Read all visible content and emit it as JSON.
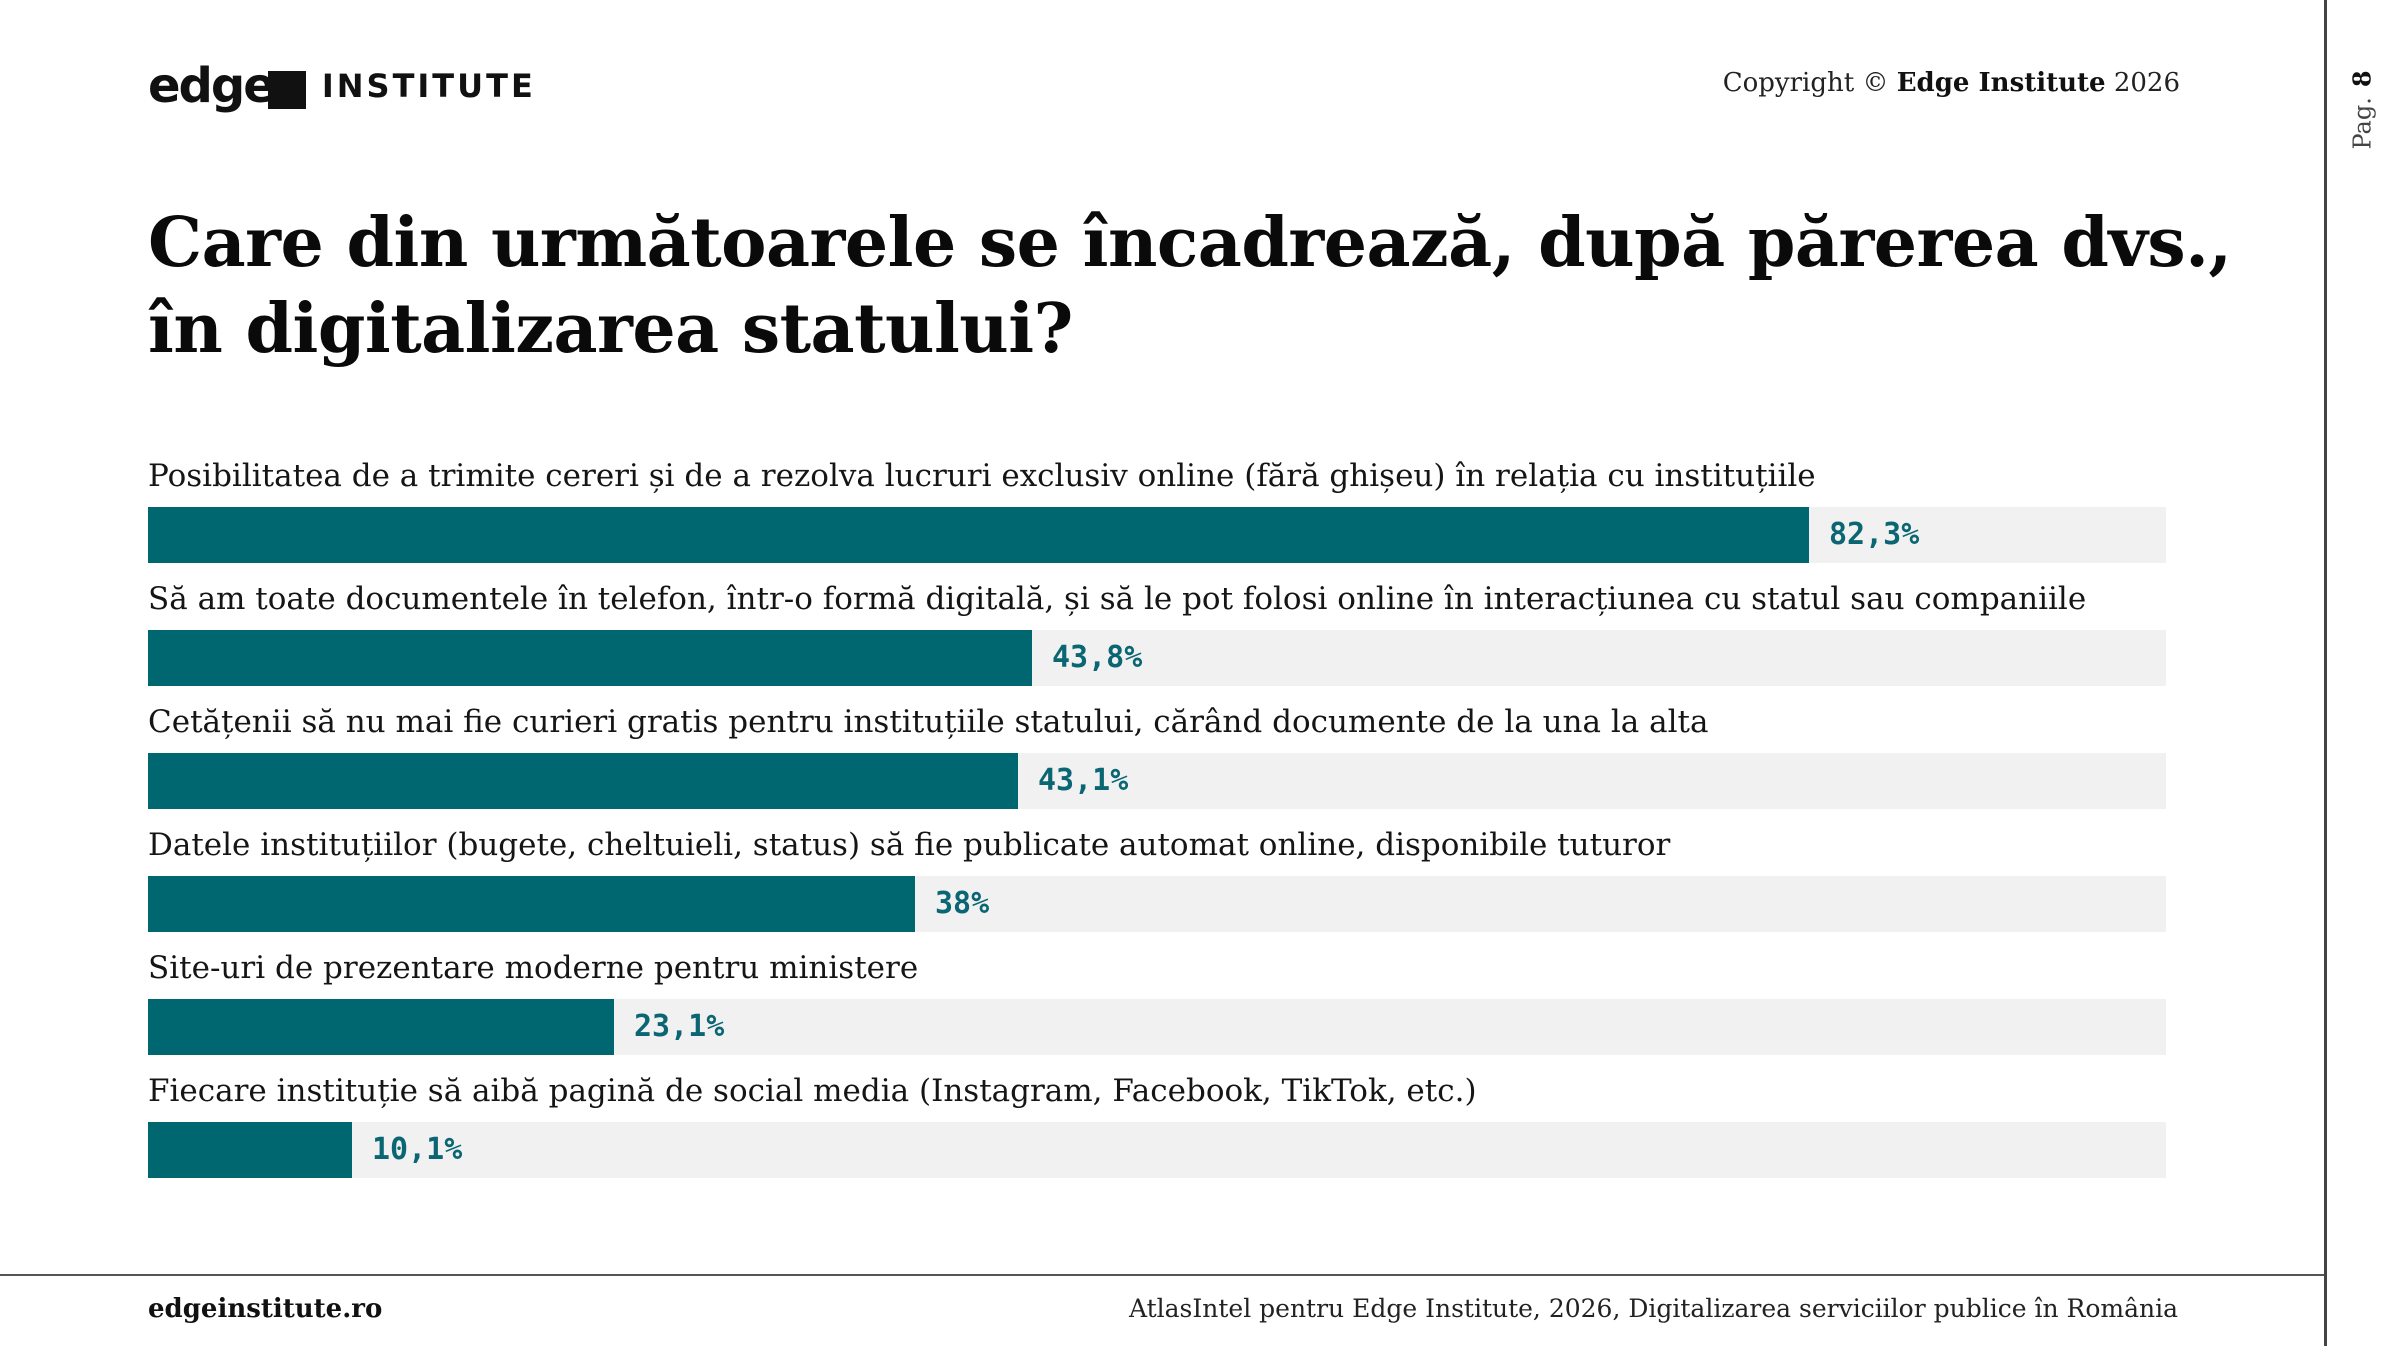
{
  "header": {
    "logo_main": "edge",
    "logo_sub": "INSTITUTE",
    "copyright_prefix": "Copyright ©",
    "copyright_brand": "Edge Institute",
    "copyright_year": "2026"
  },
  "page": {
    "label": "Pag.",
    "number": "8"
  },
  "colors": {
    "bar": "#006670",
    "track": "#f1f1f1",
    "value_text": "#0b6673"
  },
  "chart_data": {
    "type": "bar",
    "orientation": "horizontal",
    "title": "Care din următoarele se încadrează, după părerea dvs., în digitalizarea statului?",
    "xlim": [
      0,
      100
    ],
    "categories": [
      "Posibilitatea de a trimite cereri și de a rezolva lucruri exclusiv online (fără ghișeu) în relația cu instituțiile",
      "Să am toate documentele în telefon, într-o formă digitală, și să le pot folosi online în interacțiunea cu statul sau companiile",
      "Cetățenii să nu mai fie curieri gratis pentru instituțiile statului, cărând documente de la una la alta",
      "Datele instituțiilor (bugete, cheltuieli, status) să fie publicate automat online, disponibile tuturor",
      "Site-uri de prezentare moderne pentru ministere",
      "Fiecare instituție să aibă pagină de social media (Instagram, Facebook, TikTok, etc.)"
    ],
    "values": [
      82.3,
      43.8,
      43.1,
      38,
      23.1,
      10.1
    ],
    "value_labels": [
      "82,3%",
      "43,8%",
      "43,1%",
      "38%",
      "23,1%",
      "10,1%"
    ]
  },
  "footer": {
    "website": "edgeinstitute.ro",
    "source": "AtlasIntel pentru Edge Institute, 2026, Digitalizarea serviciilor publice în România"
  }
}
